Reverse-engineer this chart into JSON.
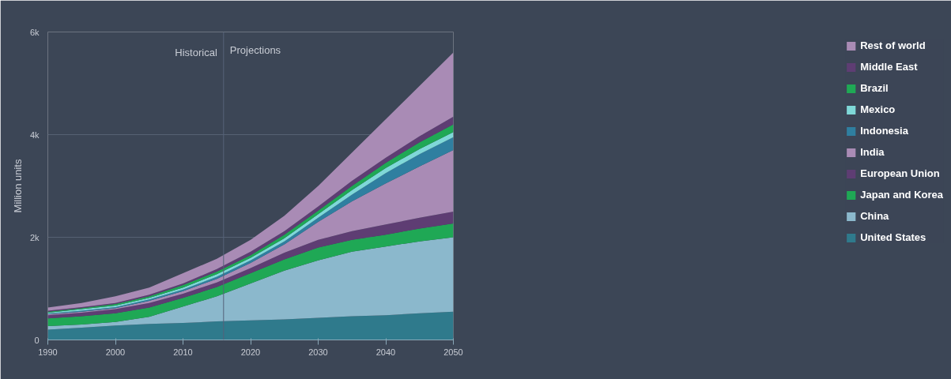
{
  "chart_data": {
    "type": "area",
    "stacked": true,
    "ylabel": "Million units",
    "x": [
      1990,
      1995,
      2000,
      2005,
      2010,
      2015,
      2020,
      2025,
      2030,
      2035,
      2040,
      2045,
      2050
    ],
    "series": [
      {
        "name": "United States",
        "color": "#2f7a8c",
        "values": [
          200,
          240,
          280,
          310,
          330,
          360,
          380,
          400,
          430,
          460,
          480,
          520,
          550
        ]
      },
      {
        "name": "China",
        "color": "#8bb8cc",
        "values": [
          70,
          60,
          70,
          140,
          320,
          490,
          720,
          950,
          1120,
          1260,
          1340,
          1400,
          1450
        ]
      },
      {
        "name": "Japan and Korea",
        "color": "#1fa855",
        "values": [
          150,
          160,
          170,
          180,
          170,
          180,
          200,
          220,
          250,
          230,
          230,
          250,
          270
        ]
      },
      {
        "name": "European Union",
        "color": "#5e3d73",
        "values": [
          60,
          70,
          80,
          90,
          80,
          90,
          100,
          130,
          150,
          170,
          200,
          210,
          230
        ]
      },
      {
        "name": "India",
        "color": "#a98bb5",
        "values": [
          20,
          20,
          20,
          40,
          50,
          70,
          100,
          160,
          350,
          580,
          800,
          1000,
          1200
        ]
      },
      {
        "name": "Indonesia",
        "color": "#2f7fa0",
        "values": [
          10,
          20,
          20,
          30,
          30,
          40,
          50,
          60,
          80,
          130,
          200,
          240,
          250
        ]
      },
      {
        "name": "Mexico",
        "color": "#7fd8d8",
        "values": [
          20,
          30,
          30,
          30,
          40,
          50,
          50,
          60,
          70,
          90,
          100,
          100,
          100
        ]
      },
      {
        "name": "Brazil",
        "color": "#1fa855",
        "values": [
          20,
          20,
          30,
          30,
          50,
          50,
          50,
          70,
          70,
          80,
          100,
          130,
          150
        ]
      },
      {
        "name": "Middle East",
        "color": "#5e3d73",
        "values": [
          20,
          20,
          20,
          30,
          30,
          50,
          70,
          70,
          80,
          100,
          100,
          120,
          150
        ]
      },
      {
        "name": "Rest of world",
        "color": "#a98bb5",
        "values": [
          60,
          80,
          130,
          140,
          200,
          200,
          230,
          300,
          400,
          550,
          750,
          980,
          1250
        ]
      }
    ],
    "xlim": [
      1990,
      2050
    ],
    "xticks": [
      1990,
      2000,
      2010,
      2020,
      2030,
      2040,
      2050
    ],
    "ylim": [
      0,
      6000
    ],
    "yticks": [
      0,
      {
        "value": 2000,
        "label": "2k"
      },
      {
        "value": 4000,
        "label": "4k"
      },
      {
        "value": 6000,
        "label": "6k"
      }
    ],
    "ref_lines": [
      {
        "axis": "x",
        "value": 2016,
        "label": "Projections"
      }
    ],
    "annotations": [
      {
        "text": "Historical",
        "x": 2016,
        "y": 5600
      }
    ],
    "grid": "y",
    "legend": "right"
  }
}
